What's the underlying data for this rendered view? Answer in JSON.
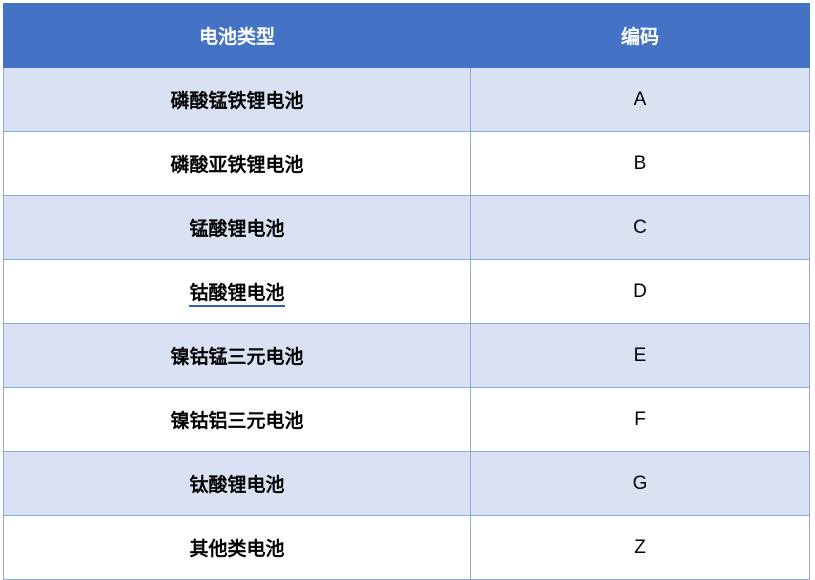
{
  "header": {
    "type": "电池类型",
    "code": "编码"
  },
  "rows": [
    {
      "type": "磷酸锰铁锂电池",
      "code": "A"
    },
    {
      "type": "磷酸亚铁锂电池",
      "code": "B"
    },
    {
      "type": "锰酸锂电池",
      "code": "C"
    },
    {
      "type": "钴酸锂电池",
      "code": "D"
    },
    {
      "type": "镍钴锰三元电池",
      "code": "E"
    },
    {
      "type": "镍钴铝三元电池",
      "code": "F"
    },
    {
      "type": "钛酸锂电池",
      "code": "G"
    },
    {
      "type": "其他类电池",
      "code": "Z"
    }
  ],
  "colors": {
    "header_bg": "#4472C4",
    "band_bg": "#D9E2F3",
    "border": "#8EAADB"
  }
}
